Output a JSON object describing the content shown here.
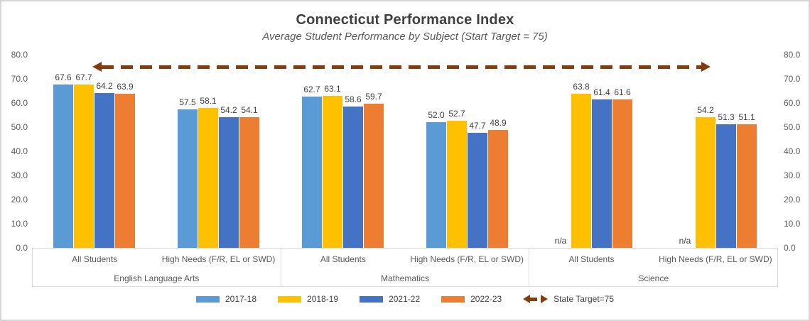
{
  "chart_data": {
    "type": "bar",
    "title": "Connecticut Performance Index",
    "subtitle": "Average Student Performance by Subject (Start Target = 75)",
    "ylim": [
      0,
      80
    ],
    "yticks": [
      0,
      10,
      20,
      30,
      40,
      50,
      60,
      70,
      80
    ],
    "ytick_labels": [
      "0.0",
      "10.0",
      "20.0",
      "30.0",
      "40.0",
      "50.0",
      "60.0",
      "70.0",
      "80.0"
    ],
    "grid": false,
    "axis_sides": [
      "left",
      "right"
    ],
    "legend_position": "bottom",
    "series": [
      {
        "name": "2017-18",
        "color": "#5B9BD5"
      },
      {
        "name": "2018-19",
        "color": "#FFC000"
      },
      {
        "name": "2021-22",
        "color": "#4472C4"
      },
      {
        "name": "2022-23",
        "color": "#ED7D31"
      }
    ],
    "subjects": [
      {
        "label": "English Language Arts",
        "groups": [
          {
            "label": "All Students",
            "values": [
              67.6,
              67.7,
              64.2,
              63.9
            ],
            "labels": [
              "67.6",
              "67.7",
              "64.2",
              "63.9"
            ]
          },
          {
            "label": "High Needs (F/R, EL or SWD)",
            "values": [
              57.5,
              58.1,
              54.2,
              54.1
            ],
            "labels": [
              "57.5",
              "58.1",
              "54.2",
              "54.1"
            ]
          }
        ]
      },
      {
        "label": "Mathematics",
        "groups": [
          {
            "label": "All Students",
            "values": [
              62.7,
              63.1,
              58.6,
              59.7
            ],
            "labels": [
              "62.7",
              "63.1",
              "58.6",
              "59.7"
            ]
          },
          {
            "label": "High Needs (F/R, EL or SWD)",
            "values": [
              52.0,
              52.7,
              47.7,
              48.9
            ],
            "labels": [
              "52.0",
              "52.7",
              "47.7",
              "48.9"
            ]
          }
        ]
      },
      {
        "label": "Science",
        "groups": [
          {
            "label": "All Students",
            "values": [
              null,
              63.8,
              61.4,
              61.6
            ],
            "labels": [
              "n/a",
              "63.8",
              "61.4",
              "61.6"
            ]
          },
          {
            "label": "High Needs (F/R, EL or SWD)",
            "values": [
              null,
              54.2,
              51.3,
              51.1
            ],
            "labels": [
              "n/a",
              "54.2",
              "51.3",
              "51.1"
            ]
          }
        ]
      }
    ],
    "target_line": {
      "value": 75,
      "label": "State Target=75",
      "color": "#843C0C",
      "style": "dashed, arrowheads both ends"
    }
  }
}
